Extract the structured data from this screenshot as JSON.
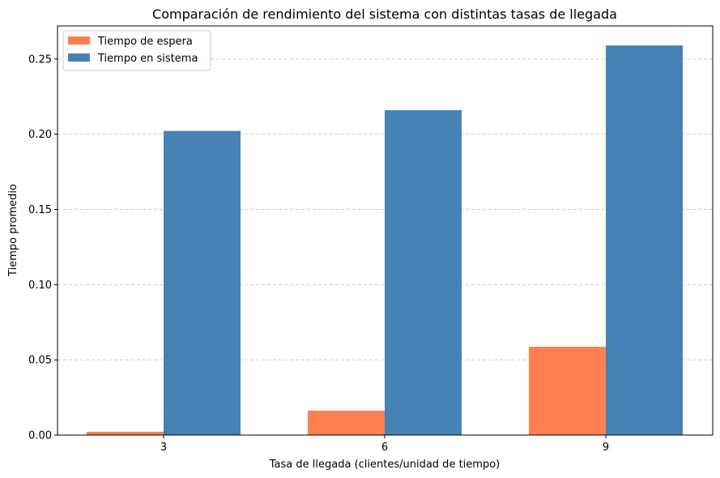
{
  "chart_data": {
    "type": "bar",
    "title": "Comparación de rendimiento del sistema con distintas tasas de llegada",
    "xlabel": "Tasa de llegada (clientes/unidad de tiempo)",
    "ylabel": "Tiempo promedio",
    "categories": [
      "3",
      "6",
      "9"
    ],
    "series": [
      {
        "name": "Tiempo de espera",
        "values": [
          0.0022,
          0.0162,
          0.0587
        ],
        "color": "#ff7f50"
      },
      {
        "name": "Tiempo en sistema",
        "values": [
          0.2022,
          0.216,
          0.259
        ],
        "color": "#4682b4"
      }
    ],
    "ylim": [
      0,
      0.272
    ],
    "yticks": [
      "0.00",
      "0.05",
      "0.10",
      "0.15",
      "0.20",
      "0.25"
    ],
    "grid": "horizontal-dashed",
    "legend_position": "top-left"
  }
}
